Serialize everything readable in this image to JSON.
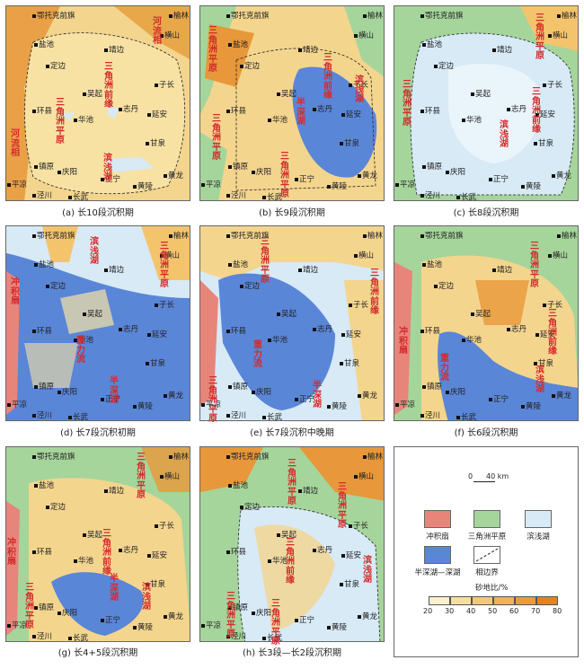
{
  "panels": [
    {
      "id": "a",
      "caption": "(a) 长10段沉积期"
    },
    {
      "id": "b",
      "caption": "(b) 长9段沉积期"
    },
    {
      "id": "c",
      "caption": "(c) 长8段沉积期"
    },
    {
      "id": "d",
      "caption": "(d) 长7段沉积初期"
    },
    {
      "id": "e",
      "caption": "(e) 长7段沉积中晚期"
    },
    {
      "id": "f",
      "caption": "(f) 长6段沉积期"
    },
    {
      "id": "g",
      "caption": "(g) 长4+5段沉积期"
    },
    {
      "id": "h",
      "caption": "(h) 长3段—长2段沉积期"
    }
  ],
  "cities": [
    "鄂托克前旗",
    "榆林",
    "盐池",
    "横山",
    "定边",
    "靖边",
    "吴起",
    "子长",
    "志丹",
    "环县",
    "华池",
    "延安",
    "庆阳",
    "甘泉",
    "镇原",
    "平凉",
    "泾川",
    "长武",
    "正宁",
    "黄陵",
    "黄龙"
  ],
  "facies_text": {
    "river_1": "河",
    "river_2": "流",
    "river_3": "相",
    "delta": "三角洲平原",
    "delta_front": "三角洲前缘",
    "shore_lake": "滨浅湖",
    "deep_lake": "半深湖",
    "fan": "冲积扇",
    "gravity": "重力流"
  },
  "legend": {
    "scale_0": "0",
    "scale_40": "40 km",
    "items": [
      {
        "label": "冲积扇",
        "color": "#e7857b"
      },
      {
        "label": "三角洲平原",
        "color": "#a5d59b"
      },
      {
        "label": "滨浅湖",
        "color": "#d7eaf6"
      },
      {
        "label": "半深湖—深湖",
        "color": "#5a86d8"
      },
      {
        "label": "相边界",
        "color": "#ffffff"
      }
    ],
    "bar_title": "砂地比/%",
    "bar_ticks": [
      "20",
      "30",
      "40",
      "50",
      "60",
      "70",
      "80"
    ],
    "bar_colors": [
      "#fbf1cf",
      "#f7dea0",
      "#f2c97a",
      "#eeb35b",
      "#e99c3f",
      "#e28422"
    ]
  },
  "colors": {
    "sand": "#f4c46d",
    "orange": "#e8973a",
    "green": "#a5d59b",
    "lightblue": "#d7eaf6",
    "blue": "#5a86d8",
    "fan": "#e7857b",
    "red": "#d42b2b"
  }
}
